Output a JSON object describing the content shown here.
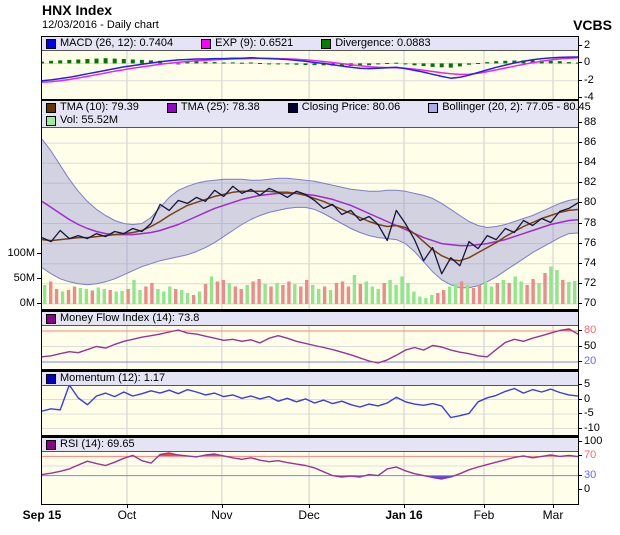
{
  "header": {
    "title": "HNX Index",
    "subtitle": "12/03/2016 - Daily chart",
    "brand": "VCBS"
  },
  "colors": {
    "plot_bg": "#FFFFE9",
    "legend_bg": "#E4E4F4",
    "grid": "#DCDCDC",
    "vgrid": "#CCCCCC",
    "close": "#16163E",
    "tma10": "#7A4010",
    "tma25": "#A22ACC",
    "boll_fill": "rgba(138,138,214,0.38)",
    "boll_edge": "#7D7DC8",
    "vol_up": "#8FE68F",
    "vol_down": "#F08A8A",
    "macd": "#2222EE",
    "exp": "#EE22EE",
    "divergence": "#007700",
    "mfi": "#993399",
    "momentum": "#3A3AE8",
    "rsi": "#993399",
    "ob_line": "#FF8080",
    "os_line": "#8080FF",
    "ob_fill": "#FF3C3C",
    "os_fill": "#5050E6"
  },
  "chart_data": {
    "type": "line",
    "subtype": "multi-panel-financial-daily",
    "x": {
      "unit": "trading-day",
      "count": 119,
      "ticks": [
        {
          "label": "Sep 15",
          "day": 0,
          "bold": true
        },
        {
          "label": "Oct",
          "day": 18.7
        },
        {
          "label": "Nov",
          "day": 39.6
        },
        {
          "label": "Dec",
          "day": 58.8
        },
        {
          "label": "Jan 16",
          "day": 79.7,
          "bold": true
        },
        {
          "label": "Feb",
          "day": 97.3
        },
        {
          "label": "Mar",
          "day": 112.5
        }
      ]
    },
    "macd": {
      "legend": [
        {
          "label": "MACD (26, 12): 0.7404",
          "color": "#0000EE"
        },
        {
          "label": "EXP (9): 0.6521",
          "color": "#FF00FF"
        },
        {
          "label": "Divergence: 0.0883",
          "color": "#008000"
        }
      ],
      "yticks": [
        {
          "v": 2,
          "label": "2"
        },
        {
          "v": 0,
          "label": "0"
        },
        {
          "v": -2,
          "label": "-2"
        },
        {
          "v": -4,
          "label": "-4"
        }
      ],
      "macd": [
        -2.0,
        -1.9,
        -1.75,
        -1.6,
        -1.4,
        -1.2,
        -1.0,
        -0.8,
        -0.6,
        -0.4,
        -0.25,
        -0.1,
        0.05,
        0.2,
        0.3,
        0.4,
        0.45,
        0.5,
        0.5,
        0.55,
        0.55,
        0.6,
        0.6,
        0.65,
        0.6,
        0.55,
        0.5,
        0.45,
        0.35,
        0.25,
        0.1,
        0.0,
        -0.15,
        -0.3,
        -0.45,
        -0.55,
        -0.6,
        -0.55,
        -0.5,
        -0.45,
        -0.6,
        -0.8,
        -1.0,
        -1.25,
        -1.5,
        -1.7,
        -1.6,
        -1.35,
        -1.05,
        -0.75,
        -0.45,
        -0.2,
        0.05,
        0.25,
        0.42,
        0.55,
        0.63,
        0.69,
        0.72,
        0.7404
      ],
      "exp": [
        -2.15,
        -2.1,
        -2.0,
        -1.85,
        -1.68,
        -1.5,
        -1.3,
        -1.1,
        -0.9,
        -0.72,
        -0.55,
        -0.4,
        -0.25,
        -0.1,
        0.02,
        0.12,
        0.22,
        0.3,
        0.36,
        0.42,
        0.46,
        0.5,
        0.53,
        0.56,
        0.57,
        0.57,
        0.55,
        0.52,
        0.47,
        0.4,
        0.32,
        0.22,
        0.1,
        -0.02,
        -0.15,
        -0.28,
        -0.38,
        -0.45,
        -0.48,
        -0.5,
        -0.55,
        -0.65,
        -0.78,
        -0.93,
        -1.08,
        -1.2,
        -1.27,
        -1.25,
        -1.13,
        -0.95,
        -0.75,
        -0.53,
        -0.32,
        -0.12,
        0.07,
        0.25,
        0.4,
        0.52,
        0.6,
        0.6521
      ],
      "divergence": [
        0.2,
        0.3,
        0.35,
        0.4,
        0.45,
        0.5,
        0.55,
        0.6,
        0.55,
        0.5,
        0.45,
        0.4,
        0.35,
        0.3,
        0.05,
        0.0,
        0.2,
        0.25,
        0.2,
        0.15,
        0.1,
        0.12,
        0.08,
        0.1,
        0.05,
        -0.05,
        -0.1,
        -0.12,
        -0.15,
        -0.18,
        -0.2,
        -0.22,
        -0.25,
        -0.28,
        -0.3,
        -0.28,
        -0.22,
        -0.1,
        0.05,
        0.08,
        -0.1,
        -0.22,
        -0.3,
        -0.4,
        -0.45,
        -0.48,
        -0.35,
        -0.15,
        0.05,
        0.15,
        0.25,
        0.3,
        0.33,
        0.35,
        0.37,
        0.35,
        0.3,
        0.25,
        0.15,
        0.0883
      ]
    },
    "price": {
      "legend": [
        {
          "label": "TMA (10): 79.39",
          "color": "#663300"
        },
        {
          "label": "TMA (25): 78.38",
          "color": "#9900CC"
        },
        {
          "label": "Closing Price: 80.06",
          "color": "#000033"
        },
        {
          "label": "Bollinger (20, 2): 77.05 - 80.45",
          "color": "#AAAAE8"
        },
        {
          "label": "Vol: 55.52M",
          "color": "#99EE99"
        }
      ],
      "yticks": [
        {
          "v": 88,
          "label": "88"
        },
        {
          "v": 86,
          "label": "86"
        },
        {
          "v": 84,
          "label": "84"
        },
        {
          "v": 82,
          "label": "82"
        },
        {
          "v": 80,
          "label": "80"
        },
        {
          "v": 78,
          "label": "78"
        },
        {
          "v": 76,
          "label": "76"
        },
        {
          "v": 74,
          "label": "74"
        },
        {
          "v": 72,
          "label": "72"
        },
        {
          "v": 70,
          "label": "70"
        }
      ],
      "close": [
        76.6,
        76.2,
        77.3,
        76.5,
        76.8,
        76.5,
        77.0,
        76.7,
        77.2,
        77.0,
        77.5,
        77.2,
        78.0,
        79.9,
        79.3,
        80.3,
        80.0,
        80.6,
        80.2,
        81.3,
        80.7,
        81.7,
        81.0,
        81.4,
        80.8,
        81.5,
        81.1,
        80.6,
        81.2,
        80.9,
        80.3,
        79.5,
        79.9,
        78.9,
        79.3,
        78.3,
        78.7,
        77.9,
        76.3,
        79.3,
        78.0,
        76.4,
        74.3,
        75.6,
        73.0,
        74.6,
        73.8,
        76.2,
        75.5,
        76.8,
        76.4,
        77.5,
        77.1,
        78.3,
        77.8,
        78.5,
        78.1,
        79.2,
        79.5,
        80.06
      ],
      "tma10": [
        76.4,
        76.3,
        76.4,
        76.5,
        76.6,
        76.6,
        76.7,
        76.8,
        76.9,
        77.0,
        77.1,
        77.3,
        77.7,
        78.2,
        78.8,
        79.3,
        79.8,
        80.1,
        80.4,
        80.7,
        80.9,
        81.1,
        81.2,
        81.2,
        81.2,
        81.2,
        81.1,
        81.1,
        81.0,
        80.8,
        80.5,
        80.2,
        79.8,
        79.4,
        79.0,
        78.6,
        78.2,
        77.9,
        77.7,
        77.8,
        77.6,
        77.0,
        76.2,
        75.4,
        74.8,
        74.4,
        74.3,
        74.6,
        75.1,
        75.6,
        76.1,
        76.7,
        77.2,
        77.7,
        78.1,
        78.5,
        78.8,
        79.1,
        79.3,
        79.39
      ],
      "tma25": [
        80.2,
        79.6,
        79.0,
        78.4,
        77.9,
        77.5,
        77.2,
        77.0,
        76.9,
        76.9,
        76.9,
        77.0,
        77.1,
        77.3,
        77.6,
        77.9,
        78.3,
        78.7,
        79.1,
        79.5,
        79.8,
        80.1,
        80.4,
        80.6,
        80.8,
        80.9,
        81.0,
        81.0,
        81.0,
        80.9,
        80.8,
        80.6,
        80.4,
        80.1,
        79.8,
        79.4,
        79.0,
        78.6,
        78.2,
        77.8,
        77.4,
        77.0,
        76.6,
        76.3,
        76.0,
        75.9,
        75.8,
        75.8,
        75.9,
        76.0,
        76.2,
        76.4,
        76.7,
        77.0,
        77.3,
        77.6,
        77.9,
        78.1,
        78.3,
        78.38
      ],
      "boll_upper": [
        86.4,
        85.2,
        83.8,
        82.4,
        81.2,
        80.2,
        79.4,
        78.8,
        78.3,
        78.0,
        77.9,
        78.0,
        78.6,
        79.6,
        80.6,
        81.3,
        81.7,
        82.0,
        82.2,
        82.3,
        82.4,
        82.4,
        82.4,
        82.3,
        82.3,
        82.4,
        82.5,
        82.5,
        82.4,
        82.3,
        82.2,
        82.0,
        81.8,
        81.6,
        81.4,
        81.3,
        81.2,
        81.2,
        81.3,
        81.3,
        81.2,
        81.0,
        80.8,
        80.5,
        80.0,
        79.4,
        78.8,
        78.2,
        77.8,
        77.6,
        77.7,
        77.9,
        78.2,
        78.5,
        78.8,
        79.2,
        79.6,
        80.0,
        80.3,
        80.45
      ],
      "boll_lower": [
        73.6,
        73.0,
        72.5,
        72.2,
        72.0,
        71.9,
        72.0,
        72.2,
        72.5,
        72.9,
        73.3,
        73.7,
        74.0,
        74.3,
        74.5,
        74.7,
        74.9,
        75.2,
        75.6,
        76.1,
        76.7,
        77.3,
        77.9,
        78.4,
        78.8,
        79.1,
        79.3,
        79.5,
        79.6,
        79.6,
        79.4,
        79.0,
        78.5,
        78.0,
        77.5,
        77.1,
        76.8,
        76.6,
        76.5,
        76.4,
        76.0,
        75.2,
        74.2,
        73.2,
        72.4,
        71.9,
        71.6,
        71.6,
        71.8,
        72.2,
        72.7,
        73.3,
        73.9,
        74.5,
        75.1,
        75.6,
        76.1,
        76.6,
        77.0,
        77.05
      ],
      "volume": {
        "yticks": [
          {
            "v": 100,
            "label": "100M"
          },
          {
            "v": 50,
            "label": "50M"
          },
          {
            "v": 0,
            "label": "0M"
          }
        ],
        "unit": "M shares",
        "values": [
          38,
          45,
          30,
          25,
          28,
          35,
          32,
          30,
          27,
          33,
          30,
          28,
          25,
          26,
          30,
          48,
          28,
          35,
          42,
          30,
          25,
          35,
          30,
          28,
          22,
          18,
          25,
          40,
          55,
          45,
          48,
          42,
          35,
          30,
          38,
          45,
          50,
          40,
          35,
          42,
          38,
          45,
          40,
          35,
          48,
          38,
          30,
          35,
          28,
          42,
          45,
          35,
          58,
          40,
          45,
          35,
          30,
          42,
          48,
          38,
          55,
          42,
          25,
          15,
          12,
          18,
          22,
          28,
          35,
          40,
          45,
          38,
          32,
          38,
          45,
          35,
          42,
          48,
          42,
          55,
          45,
          38,
          50,
          42,
          62,
          75,
          68,
          48,
          44,
          46
        ],
        "updown": "grrgrrggrggrggrggrrgggrggrgrgrrgrrgrrgrgrrgrrggrgrrrgrgggrggggggggrrggrgrrggrgrggrrgrggrgg"
      }
    },
    "mfi": {
      "legend": [
        {
          "label": "Money Flow Index (14): 73.8",
          "color": "#880088"
        }
      ],
      "yticks": [
        {
          "v": 80,
          "label": "80",
          "color": "#FF6666"
        },
        {
          "v": 50,
          "label": "50"
        },
        {
          "v": 20,
          "label": "20",
          "color": "#6666FF"
        }
      ],
      "overbought": 80,
      "oversold": 20,
      "values": [
        30,
        32,
        36,
        40,
        38,
        44,
        50,
        47,
        54,
        60,
        64,
        68,
        71,
        74,
        78,
        82,
        76,
        74,
        70,
        66,
        62,
        64,
        60,
        63,
        57,
        66,
        71,
        66,
        60,
        56,
        52,
        48,
        44,
        39,
        34,
        28,
        22,
        18,
        24,
        33,
        43,
        48,
        43,
        52,
        49,
        43,
        39,
        36,
        32,
        30,
        44,
        58,
        64,
        60,
        66,
        71,
        76,
        81,
        84,
        73.8
      ]
    },
    "momentum": {
      "legend": [
        {
          "label": "Momentum (12): 1.17",
          "color": "#0000CC"
        }
      ],
      "yticks": [
        {
          "v": 5,
          "label": "5"
        },
        {
          "v": 0,
          "label": "0"
        },
        {
          "v": -5,
          "label": "-5"
        },
        {
          "v": -10,
          "label": "-10"
        }
      ],
      "values": [
        -4.0,
        -3.2,
        -3.6,
        5.0,
        0.5,
        -1.8,
        1.2,
        2.2,
        1.0,
        2.6,
        1.2,
        2.0,
        3.0,
        2.2,
        3.2,
        2.0,
        3.4,
        2.6,
        1.6,
        2.2,
        1.0,
        1.6,
        0.4,
        1.2,
        0.2,
        1.0,
        -0.6,
        0.4,
        -0.8,
        0.2,
        -1.2,
        -0.2,
        -1.4,
        -0.6,
        -1.8,
        -2.6,
        -1.6,
        -2.2,
        -1.2,
        0.8,
        -0.8,
        -1.6,
        -2.0,
        -1.4,
        -2.2,
        -6.2,
        -5.6,
        -4.8,
        -0.8,
        0.6,
        1.4,
        2.8,
        3.8,
        2.2,
        3.4,
        2.6,
        3.6,
        2.4,
        1.6,
        1.17
      ]
    },
    "rsi": {
      "legend": [
        {
          "label": "RSI (14): 69.65",
          "color": "#880088"
        }
      ],
      "yticks": [
        {
          "v": 100,
          "label": "100"
        },
        {
          "v": 70,
          "label": "70",
          "color": "#FF6666"
        },
        {
          "v": 30,
          "label": "30",
          "color": "#6666FF"
        },
        {
          "v": 0,
          "label": "0"
        }
      ],
      "overbought": 70,
      "oversold": 30,
      "values": [
        32,
        35,
        39,
        44,
        52,
        60,
        55,
        51,
        58,
        66,
        72,
        61,
        56,
        74,
        77,
        73,
        71,
        69,
        73,
        75,
        71,
        67,
        64,
        67,
        62,
        59,
        61,
        57,
        54,
        51,
        46,
        38,
        30,
        27,
        29,
        27,
        32,
        30,
        44,
        48,
        40,
        34,
        30,
        26,
        23,
        27,
        34,
        42,
        48,
        53,
        58,
        63,
        68,
        71,
        67,
        70,
        73,
        70,
        72,
        69.65
      ]
    }
  }
}
